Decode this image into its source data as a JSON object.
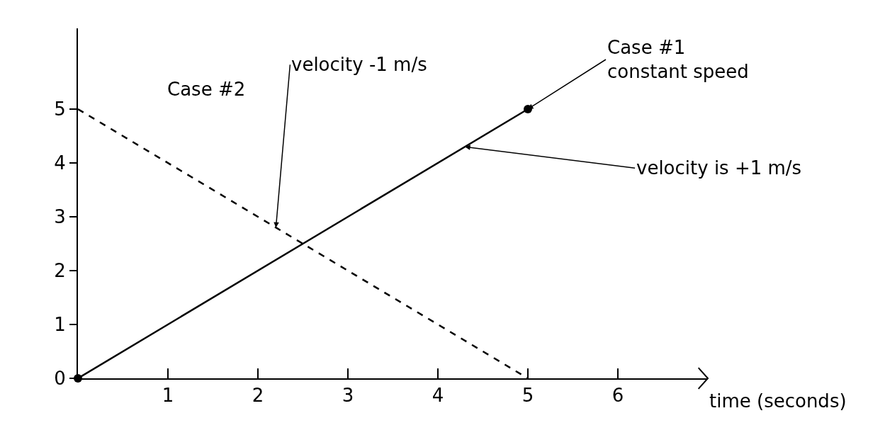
{
  "chart_data": {
    "type": "line",
    "xlabel": "time (seconds)",
    "x": [
      0,
      5
    ],
    "series": [
      {
        "color": "#000000",
        "values": [
          0,
          5
        ],
        "marker": "circle",
        "line_style": "solid"
      },
      {
        "color": "#000000",
        "values": [
          5,
          0
        ],
        "marker": "none",
        "line_style": "dashed"
      }
    ],
    "xlim": [
      0,
      7
    ],
    "ylim": [
      0,
      6.5
    ],
    "xticks": [
      1,
      2,
      3,
      4,
      5,
      6
    ],
    "yticks": [
      0,
      1,
      2,
      3,
      4,
      5
    ],
    "grid": false,
    "annotations": [
      {
        "text": "velocity -1 m/s",
        "x": 2.2,
        "y": 2.8
      },
      "Case #2",
      {
        "text": "Case #1\nconstant speed",
        "x": 5,
        "y": 5
      },
      {
        "text": "velocity is +1 m/s",
        "x": 4.3,
        "y": 4.3
      }
    ]
  }
}
